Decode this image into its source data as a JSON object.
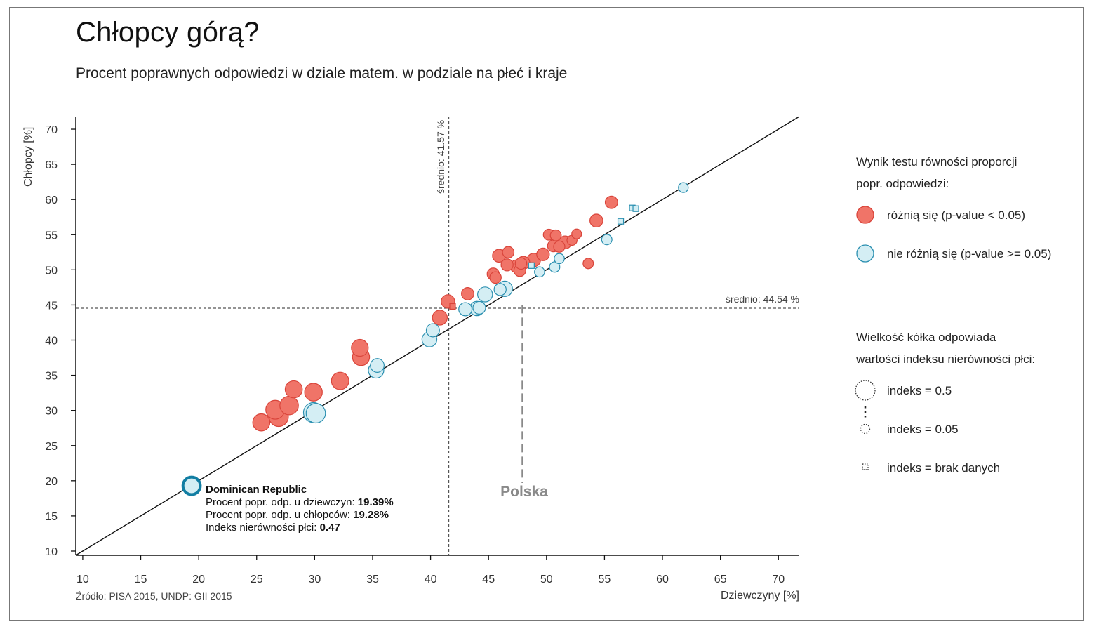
{
  "title": "Chłopcy górą?",
  "subtitle": "Procent poprawnych odpowiedzi w dziale matem. w podziale na płeć i kraje",
  "source": "Źródło: PISA 2015, UNDP: GII 2015",
  "colors": {
    "differ": "#f07468",
    "differ_stroke": "#d9443a",
    "nodiff": "#d4eef4",
    "nodiff_stroke": "#2a8fb0",
    "highlight_stroke": "#127ea3"
  },
  "legend": {
    "test_title_line1": "Wynik testu równości proporcji",
    "test_title_line2": "popr. odpowiedzi:",
    "differ_label": "różnią się (p-value < 0.05)",
    "nodiff_label": "nie różnią się (p-value >= 0.05)",
    "size_title_line1": "Wielkość kółka odpowiada",
    "size_title_line2": "wartości indeksu nierówności płci:",
    "size_big_label": "indeks = 0.5",
    "size_small_label": "indeks = 0.05",
    "size_na_label": "indeks = brak danych"
  },
  "tooltip": {
    "country": "Dominican Republic",
    "girls_label": "Procent popr. odp. u dziewczyn: ",
    "girls_value": "19.39%",
    "boys_label": "Procent popr. odp. u chłopców: ",
    "boys_value": "19.28%",
    "index_label": "Indeks nierówności płci: ",
    "index_value": "0.47"
  },
  "chart_data": {
    "type": "scatter",
    "xlabel": "Dziewczyny [%]",
    "ylabel": "Chłopcy [%]",
    "xlim": [
      9.4,
      71.8
    ],
    "ylim": [
      9.4,
      71.8
    ],
    "x_ticks": [
      10,
      15,
      20,
      25,
      30,
      35,
      40,
      45,
      50,
      55,
      60,
      65,
      70
    ],
    "y_ticks": [
      10,
      15,
      20,
      25,
      30,
      35,
      40,
      45,
      50,
      55,
      60,
      65,
      70
    ],
    "mean_x": 41.57,
    "mean_y": 44.54,
    "mean_x_label": "średnio: 41.57 %",
    "mean_y_label": "średnio: 44.54 %",
    "poland_x": 47.9,
    "poland_label": "Polska",
    "highlight": {
      "x": 19.39,
      "y": 19.28,
      "index": 0.47
    },
    "points": [
      {
        "x": 25.4,
        "y": 28.3,
        "index": 0.36,
        "diff": true
      },
      {
        "x": 26.6,
        "y": 30.1,
        "index": 0.42,
        "diff": true
      },
      {
        "x": 26.9,
        "y": 29.1,
        "index": 0.44,
        "diff": true
      },
      {
        "x": 27.8,
        "y": 30.7,
        "index": 0.41,
        "diff": true
      },
      {
        "x": 28.2,
        "y": 33.0,
        "index": 0.36,
        "diff": true
      },
      {
        "x": 29.9,
        "y": 32.6,
        "index": 0.38,
        "diff": true
      },
      {
        "x": 32.2,
        "y": 34.2,
        "index": 0.37,
        "diff": true
      },
      {
        "x": 33.9,
        "y": 38.9,
        "index": 0.35,
        "diff": true
      },
      {
        "x": 34.0,
        "y": 37.6,
        "index": 0.36,
        "diff": true
      },
      {
        "x": 40.8,
        "y": 43.2,
        "index": 0.28,
        "diff": true
      },
      {
        "x": 41.5,
        "y": 45.5,
        "index": 0.23,
        "diff": true
      },
      {
        "x": 41.9,
        "y": 44.8,
        "na": true,
        "diff": true
      },
      {
        "x": 43.2,
        "y": 46.6,
        "index": 0.19,
        "diff": true
      },
      {
        "x": 45.4,
        "y": 49.4,
        "index": 0.18,
        "diff": true
      },
      {
        "x": 45.6,
        "y": 48.9,
        "index": 0.16,
        "diff": true
      },
      {
        "x": 45.9,
        "y": 52.0,
        "index": 0.21,
        "diff": true
      },
      {
        "x": 46.6,
        "y": 50.7,
        "index": 0.18,
        "diff": true
      },
      {
        "x": 46.7,
        "y": 52.5,
        "index": 0.16,
        "diff": true
      },
      {
        "x": 47.4,
        "y": 50.5,
        "index": 0.2,
        "diff": true
      },
      {
        "x": 47.7,
        "y": 49.9,
        "index": 0.17,
        "diff": true
      },
      {
        "x": 47.8,
        "y": 50.9,
        "index": 0.16,
        "diff": true
      },
      {
        "x": 48.0,
        "y": 51.0,
        "index": 0.21,
        "diff": true
      },
      {
        "x": 48.9,
        "y": 51.4,
        "index": 0.23,
        "diff": true
      },
      {
        "x": 49.7,
        "y": 52.2,
        "index": 0.2,
        "diff": true
      },
      {
        "x": 50.2,
        "y": 55.0,
        "index": 0.14,
        "diff": true
      },
      {
        "x": 50.6,
        "y": 53.4,
        "index": 0.17,
        "diff": true
      },
      {
        "x": 50.8,
        "y": 54.9,
        "index": 0.14,
        "diff": true
      },
      {
        "x": 51.1,
        "y": 53.3,
        "index": 0.15,
        "diff": true
      },
      {
        "x": 51.6,
        "y": 53.9,
        "index": 0.21,
        "diff": true
      },
      {
        "x": 52.2,
        "y": 54.2,
        "index": 0.11,
        "diff": true
      },
      {
        "x": 52.6,
        "y": 55.1,
        "index": 0.1,
        "diff": true
      },
      {
        "x": 53.6,
        "y": 50.9,
        "index": 0.12,
        "diff": true
      },
      {
        "x": 54.3,
        "y": 57.0,
        "index": 0.21,
        "diff": true
      },
      {
        "x": 55.6,
        "y": 59.6,
        "index": 0.19,
        "diff": true
      },
      {
        "x": 29.9,
        "y": 29.7,
        "index": 0.46,
        "diff": false
      },
      {
        "x": 30.1,
        "y": 29.6,
        "index": 0.44,
        "diff": false
      },
      {
        "x": 35.3,
        "y": 35.7,
        "index": 0.3,
        "diff": false
      },
      {
        "x": 35.4,
        "y": 36.4,
        "index": 0.24,
        "diff": false
      },
      {
        "x": 39.9,
        "y": 40.1,
        "index": 0.28,
        "diff": false
      },
      {
        "x": 40.2,
        "y": 41.4,
        "index": 0.22,
        "diff": false
      },
      {
        "x": 43.0,
        "y": 44.4,
        "index": 0.22,
        "diff": false
      },
      {
        "x": 44.0,
        "y": 44.5,
        "index": 0.26,
        "diff": false
      },
      {
        "x": 44.2,
        "y": 44.6,
        "index": 0.2,
        "diff": false
      },
      {
        "x": 44.7,
        "y": 46.5,
        "index": 0.28,
        "diff": false
      },
      {
        "x": 46.0,
        "y": 47.2,
        "index": 0.18,
        "diff": false
      },
      {
        "x": 46.4,
        "y": 47.3,
        "index": 0.3,
        "diff": false
      },
      {
        "x": 48.7,
        "y": 50.6,
        "na": true,
        "diff": false
      },
      {
        "x": 49.4,
        "y": 49.7,
        "index": 0.11,
        "diff": false
      },
      {
        "x": 50.7,
        "y": 50.4,
        "index": 0.12,
        "diff": false
      },
      {
        "x": 51.1,
        "y": 51.6,
        "index": 0.11,
        "diff": false
      },
      {
        "x": 55.2,
        "y": 54.3,
        "index": 0.12,
        "diff": false
      },
      {
        "x": 56.4,
        "y": 56.9,
        "na": true,
        "diff": false
      },
      {
        "x": 57.4,
        "y": 58.8,
        "na": true,
        "diff": false
      },
      {
        "x": 57.7,
        "y": 58.7,
        "na": true,
        "diff": false
      },
      {
        "x": 61.8,
        "y": 61.7,
        "index": 0.1,
        "diff": false
      }
    ]
  }
}
